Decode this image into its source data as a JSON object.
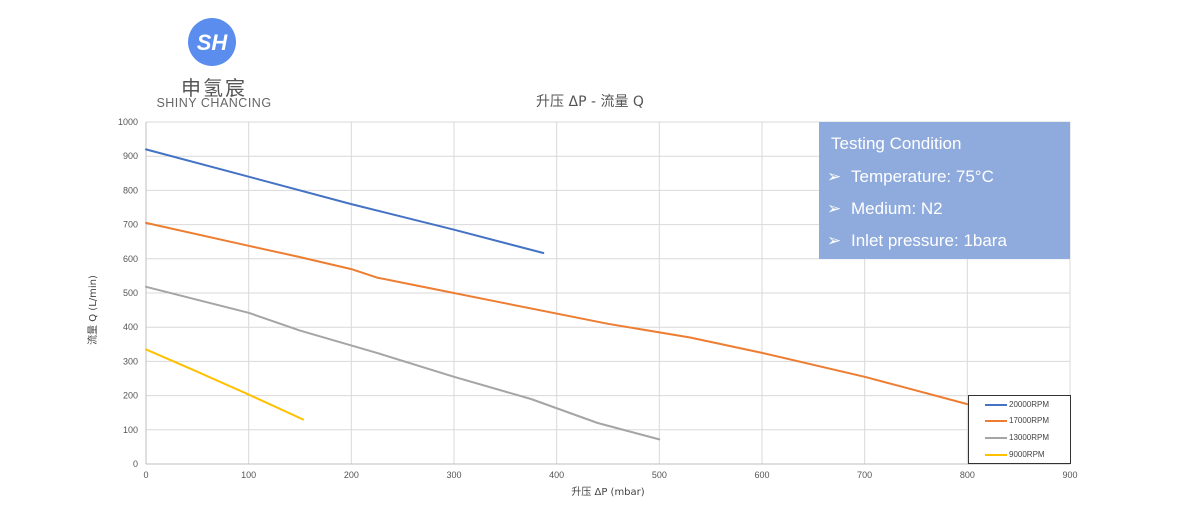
{
  "logo": {
    "icon": "shiny-chancing-logo-icon",
    "icon_text": "SH",
    "name_cn": "申氢宸",
    "name_en": "SHINY CHANCING",
    "color": "#5b8def"
  },
  "chart_data": {
    "type": "line",
    "title": "升压 ΔP - 流量 Q",
    "xlabel": "升压 ΔP (mbar)",
    "ylabel": "流量 Q (L/min)",
    "xlim": [
      0,
      900
    ],
    "ylim": [
      0,
      1000
    ],
    "xticks": [
      "0",
      "100",
      "200",
      "300",
      "400",
      "500",
      "600",
      "700",
      "800",
      "900"
    ],
    "yticks": [
      "0",
      "100",
      "200",
      "300",
      "400",
      "500",
      "600",
      "700",
      "800",
      "900",
      "1000"
    ],
    "grid": true,
    "legend_position": "bottom-right",
    "series": [
      {
        "name": "20000RPM",
        "color": "#4472c4",
        "points": [
          [
            0,
            920
          ],
          [
            100,
            840
          ],
          [
            200,
            760
          ],
          [
            300,
            685
          ],
          [
            387,
            617
          ]
        ]
      },
      {
        "name": "17000RPM",
        "color": "#ed7d31",
        "points": [
          [
            0,
            705
          ],
          [
            100,
            638
          ],
          [
            150,
            605
          ],
          [
            200,
            570
          ],
          [
            225,
            545
          ],
          [
            275,
            515
          ],
          [
            350,
            470
          ],
          [
            450,
            410
          ],
          [
            530,
            370
          ],
          [
            600,
            325
          ],
          [
            700,
            255
          ],
          [
            800,
            175
          ],
          [
            820,
            165
          ]
        ]
      },
      {
        "name": "13000RPM",
        "color": "#a5a5a5",
        "points": [
          [
            0,
            518
          ],
          [
            100,
            442
          ],
          [
            150,
            390
          ],
          [
            225,
            325
          ],
          [
            300,
            255
          ],
          [
            375,
            190
          ],
          [
            440,
            120
          ],
          [
            500,
            72
          ]
        ]
      },
      {
        "name": "9000RPM",
        "color": "#ffc000",
        "points": [
          [
            0,
            335
          ],
          [
            50,
            270
          ],
          [
            100,
            203
          ],
          [
            153,
            130
          ]
        ]
      }
    ]
  },
  "testing_condition": {
    "title": "Testing Condition",
    "bullet": "➢",
    "items": [
      "Temperature: 75°C",
      "Medium: N2",
      "Inlet pressure: 1bara"
    ],
    "background": "#8faadc"
  }
}
